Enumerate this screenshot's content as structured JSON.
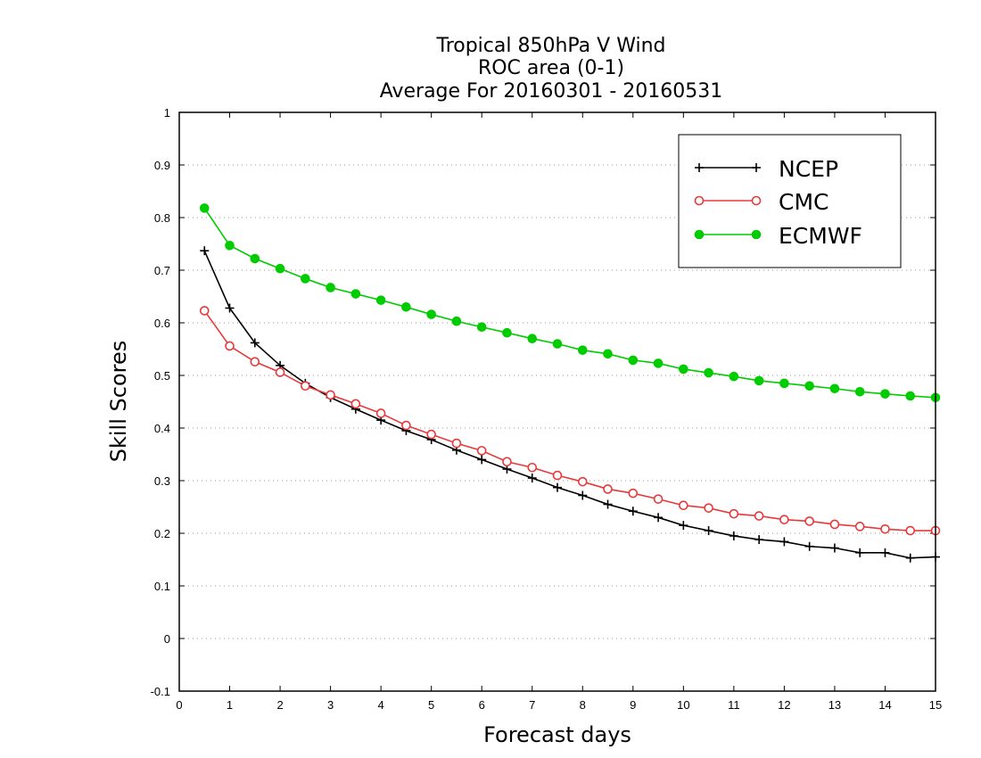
{
  "chart_data": {
    "type": "line",
    "title_lines": [
      "Tropical 850hPa V Wind",
      "ROC area (0-1)",
      "Average For 20160301 - 20160531"
    ],
    "xlabel": "Forecast days",
    "ylabel": "Skill Scores",
    "xlim": [
      0,
      15
    ],
    "ylim": [
      -0.1,
      1
    ],
    "xticks": [
      0,
      1,
      2,
      3,
      4,
      5,
      6,
      7,
      8,
      9,
      10,
      11,
      12,
      13,
      14,
      15
    ],
    "yticks": [
      -0.1,
      0,
      0.1,
      0.2,
      0.3,
      0.4,
      0.5,
      0.6,
      0.7,
      0.8,
      0.9,
      1
    ],
    "ytick_labels": [
      "-0.1",
      "0",
      "0.1",
      "0.2",
      "0.3",
      "0.4",
      "0.5",
      "0.6",
      "0.7",
      "0.8",
      "0.9",
      "1"
    ],
    "grid": "horizontal dotted",
    "legend_position": "top-right",
    "x": [
      0.5,
      1,
      1.5,
      2,
      2.5,
      3,
      3.5,
      4,
      4.5,
      5,
      5.5,
      6,
      6.5,
      7,
      7.5,
      8,
      8.5,
      9,
      9.5,
      10,
      10.5,
      11,
      11.5,
      12,
      12.5,
      13,
      13.5,
      14,
      14.5,
      15
    ],
    "series": [
      {
        "name": "NCEP",
        "color": "#000000",
        "marker": "plus",
        "values": [
          0.737,
          0.628,
          0.562,
          0.519,
          0.485,
          0.458,
          0.436,
          0.415,
          0.395,
          0.378,
          0.358,
          0.34,
          0.322,
          0.305,
          0.287,
          0.272,
          0.255,
          0.242,
          0.23,
          0.215,
          0.205,
          0.195,
          0.188,
          0.184,
          0.175,
          0.172,
          0.163,
          0.163,
          0.153,
          0.155
        ]
      },
      {
        "name": "CMC",
        "color": "#e8393a",
        "marker": "open-circle",
        "values": [
          0.623,
          0.556,
          0.526,
          0.506,
          0.48,
          0.463,
          0.446,
          0.428,
          0.405,
          0.388,
          0.371,
          0.357,
          0.336,
          0.325,
          0.31,
          0.298,
          0.284,
          0.276,
          0.265,
          0.253,
          0.248,
          0.237,
          0.233,
          0.226,
          0.223,
          0.217,
          0.213,
          0.208,
          0.205,
          0.205
        ]
      },
      {
        "name": "ECMWF",
        "color": "#00cc00",
        "marker": "filled-circle",
        "values": [
          0.818,
          0.747,
          0.722,
          0.703,
          0.684,
          0.667,
          0.655,
          0.643,
          0.63,
          0.616,
          0.603,
          0.592,
          0.581,
          0.57,
          0.56,
          0.548,
          0.541,
          0.529,
          0.523,
          0.512,
          0.505,
          0.498,
          0.49,
          0.485,
          0.48,
          0.475,
          0.469,
          0.465,
          0.461,
          0.458
        ]
      }
    ]
  }
}
